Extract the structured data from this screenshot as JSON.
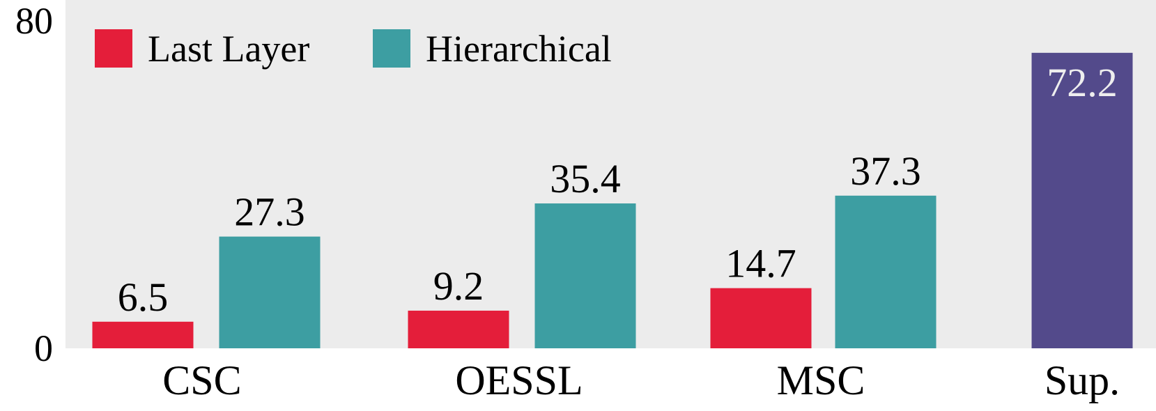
{
  "chart_data": {
    "type": "bar",
    "title": "",
    "xlabel": "",
    "ylabel": "",
    "ylim": [
      0,
      80
    ],
    "y_ticks": [
      "0",
      "80"
    ],
    "grid": false,
    "legend_position": "top-left",
    "categories": [
      "CSC",
      "OESSL",
      "MSC",
      "Sup."
    ],
    "series": [
      {
        "name": "Last Layer",
        "color": "#e41e3a",
        "values": [
          6.5,
          9.2,
          14.7,
          null
        ],
        "labels": [
          "6.5",
          "9.2",
          "14.7",
          ""
        ]
      },
      {
        "name": "Hierarchical",
        "color": "#3d9ea2",
        "values": [
          27.3,
          35.4,
          37.3,
          null
        ],
        "labels": [
          "27.3",
          "35.4",
          "37.3",
          ""
        ]
      },
      {
        "name": "",
        "color": "#534a8b",
        "values": [
          null,
          null,
          null,
          72.2
        ],
        "labels": [
          "",
          "",
          "",
          "72.2"
        ]
      }
    ],
    "background_color": "#ececec"
  }
}
